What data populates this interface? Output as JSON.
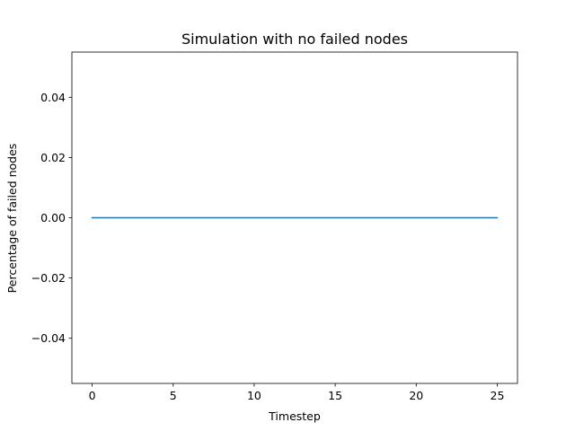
{
  "chart_data": {
    "type": "line",
    "title": "Simulation with no failed nodes",
    "xlabel": "Timestep",
    "ylabel": "Percentage of failed nodes",
    "xlim": [
      -1.25,
      26.25
    ],
    "ylim": [
      -0.055,
      0.055
    ],
    "xticks": [
      0,
      5,
      10,
      15,
      20,
      25
    ],
    "xtick_labels": [
      "0",
      "5",
      "10",
      "15",
      "20",
      "25"
    ],
    "yticks": [
      -0.04,
      -0.02,
      0.0,
      0.02,
      0.04
    ],
    "ytick_labels": [
      "−0.04",
      "−0.02",
      "0.00",
      "0.02",
      "0.04"
    ],
    "grid": false,
    "series": [
      {
        "x": [
          0,
          1,
          2,
          3,
          4,
          5,
          6,
          7,
          8,
          9,
          10,
          11,
          12,
          13,
          14,
          15,
          16,
          17,
          18,
          19,
          20,
          21,
          22,
          23,
          24,
          25
        ],
        "y": [
          0,
          0,
          0,
          0,
          0,
          0,
          0,
          0,
          0,
          0,
          0,
          0,
          0,
          0,
          0,
          0,
          0,
          0,
          0,
          0,
          0,
          0,
          0,
          0,
          0,
          0
        ],
        "color": "#1f77b4"
      }
    ]
  }
}
